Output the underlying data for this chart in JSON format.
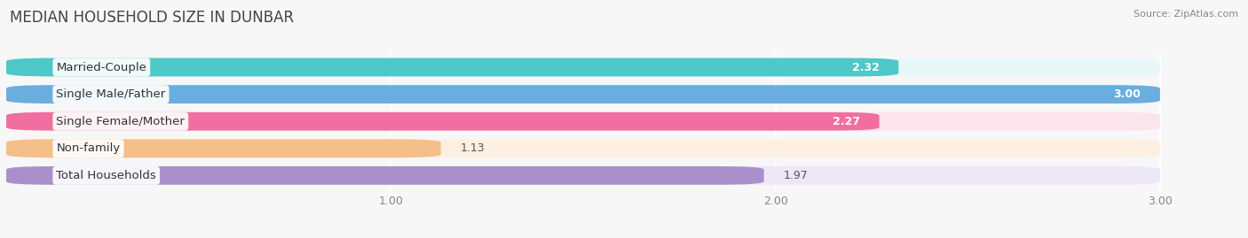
{
  "title": "MEDIAN HOUSEHOLD SIZE IN DUNBAR",
  "source": "Source: ZipAtlas.com",
  "categories": [
    "Married-Couple",
    "Single Male/Father",
    "Single Female/Mother",
    "Non-family",
    "Total Households"
  ],
  "values": [
    2.32,
    3.0,
    2.27,
    1.13,
    1.97
  ],
  "bar_colors": [
    "#4ec8c8",
    "#6aaee0",
    "#f06fa0",
    "#f5bf8a",
    "#a990cc"
  ],
  "bar_bg_colors": [
    "#e8f8f8",
    "#e4eef8",
    "#fce4ec",
    "#fdf0e0",
    "#ede7f6"
  ],
  "xlim": [
    0,
    3.18
  ],
  "xmin": 0,
  "xmax": 3.0,
  "xticks": [
    1.0,
    2.0,
    3.0
  ],
  "label_fontsize": 9.5,
  "value_fontsize": 9,
  "title_fontsize": 12,
  "background_color": "#f7f7f7"
}
